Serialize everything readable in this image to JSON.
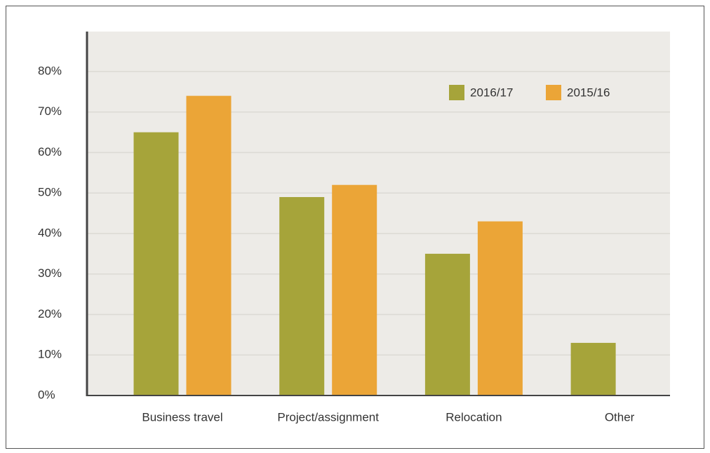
{
  "chart_data": {
    "type": "bar",
    "categories": [
      "Business travel",
      "Project/assignment",
      "Relocation",
      "Other"
    ],
    "series": [
      {
        "name": "2016/17",
        "color": "#a6a43a",
        "values": [
          65,
          49,
          35,
          13
        ]
      },
      {
        "name": "2015/16",
        "color": "#eba537",
        "values": [
          74,
          52,
          43,
          null
        ]
      }
    ],
    "ylim": [
      0,
      80
    ],
    "yticks": [
      {
        "value": 0,
        "label": "0%"
      },
      {
        "value": 10,
        "label": "10%"
      },
      {
        "value": 20,
        "label": "20%"
      },
      {
        "value": 30,
        "label": "30%"
      },
      {
        "value": 40,
        "label": "40%"
      },
      {
        "value": 50,
        "label": "50%"
      },
      {
        "value": 60,
        "label": "60%"
      },
      {
        "value": 70,
        "label": "70%"
      },
      {
        "value": 80,
        "label": "80%"
      }
    ],
    "grid": true,
    "legend": "top-right"
  }
}
